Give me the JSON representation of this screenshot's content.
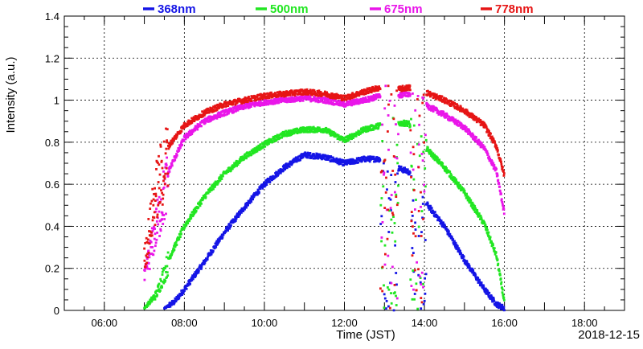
{
  "chart_data": {
    "type": "scatter",
    "xlabel": "Time (JST)",
    "ylabel": "Intensity (a.u.)",
    "date": "2018-12-15",
    "xlim": [
      5.0,
      19.0
    ],
    "ylim": [
      0,
      1.4
    ],
    "xticks": [
      {
        "v": 6,
        "label": "06:00"
      },
      {
        "v": 8,
        "label": "08:00"
      },
      {
        "v": 10,
        "label": "10:00"
      },
      {
        "v": 12,
        "label": "12:00"
      },
      {
        "v": 14,
        "label": "14:00"
      },
      {
        "v": 16,
        "label": "16:00"
      },
      {
        "v": 18,
        "label": "18:00"
      }
    ],
    "yticks": [
      {
        "v": 0,
        "label": "0"
      },
      {
        "v": 0.2,
        "label": "0.2"
      },
      {
        "v": 0.4,
        "label": "0.4"
      },
      {
        "v": 0.6,
        "label": "0.6"
      },
      {
        "v": 0.8,
        "label": "0.8"
      },
      {
        "v": 1.0,
        "label": "1"
      },
      {
        "v": 1.2,
        "label": "1.2"
      },
      {
        "v": 1.4,
        "label": "1.4"
      }
    ],
    "grid": true,
    "legend_position": "top",
    "series": [
      {
        "name": "368nm",
        "color": "#1515e6",
        "x": [
          7.5,
          7.75,
          8.0,
          8.5,
          9.0,
          9.5,
          10.0,
          10.5,
          11.0,
          11.5,
          12.0,
          12.5,
          12.9,
          13.3,
          13.6,
          14.0,
          14.5,
          15.0,
          15.5,
          15.8,
          16.0
        ],
        "y": [
          0.01,
          0.04,
          0.1,
          0.23,
          0.37,
          0.49,
          0.6,
          0.68,
          0.74,
          0.73,
          0.7,
          0.72,
          0.72,
          0.68,
          0.66,
          0.52,
          0.4,
          0.24,
          0.1,
          0.03,
          0.01
        ]
      },
      {
        "name": "500nm",
        "color": "#22e622",
        "x": [
          7.0,
          7.3,
          7.6,
          8.0,
          8.5,
          9.0,
          9.5,
          10.0,
          10.5,
          11.0,
          11.5,
          12.0,
          12.5,
          12.9,
          13.3,
          13.6,
          14.0,
          14.5,
          15.0,
          15.5,
          15.8,
          16.0
        ],
        "y": [
          0.01,
          0.08,
          0.24,
          0.4,
          0.54,
          0.65,
          0.73,
          0.79,
          0.84,
          0.86,
          0.86,
          0.81,
          0.86,
          0.88,
          0.89,
          0.89,
          0.78,
          0.68,
          0.56,
          0.41,
          0.26,
          0.04
        ]
      },
      {
        "name": "675nm",
        "color": "#e916e9",
        "x": [
          7.0,
          7.3,
          7.6,
          8.0,
          8.5,
          9.0,
          9.5,
          10.0,
          10.5,
          11.0,
          11.5,
          12.0,
          12.5,
          12.9,
          13.3,
          13.6,
          14.0,
          14.5,
          15.0,
          15.5,
          15.8,
          16.0
        ],
        "y": [
          0.16,
          0.42,
          0.66,
          0.82,
          0.9,
          0.94,
          0.97,
          0.99,
          1.0,
          1.01,
          1.0,
          0.98,
          1.0,
          1.02,
          1.02,
          1.03,
          0.98,
          0.93,
          0.87,
          0.77,
          0.66,
          0.46
        ]
      },
      {
        "name": "778nm",
        "color": "#e61515",
        "x": [
          7.0,
          7.3,
          7.6,
          8.0,
          8.5,
          9.0,
          9.5,
          10.0,
          10.5,
          11.0,
          11.5,
          12.0,
          12.5,
          12.9,
          13.3,
          13.6,
          14.0,
          14.5,
          15.0,
          15.5,
          15.8,
          16.0
        ],
        "y": [
          0.25,
          0.6,
          0.78,
          0.88,
          0.94,
          0.98,
          1.0,
          1.02,
          1.03,
          1.04,
          1.03,
          1.01,
          1.04,
          1.06,
          1.05,
          1.06,
          1.04,
          1.0,
          0.95,
          0.88,
          0.78,
          0.64
        ]
      }
    ]
  }
}
